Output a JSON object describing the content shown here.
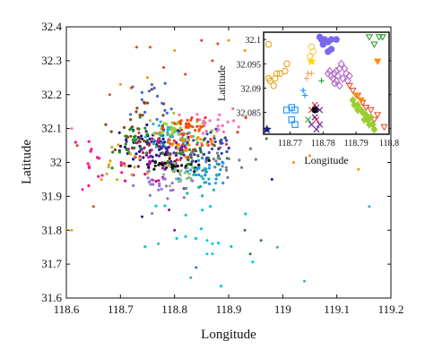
{
  "chart_data": [
    {
      "panel": "main",
      "type": "scatter",
      "xlabel": "Longitude",
      "ylabel": "Latitude",
      "xlim": [
        118.6,
        119.2
      ],
      "ylim": [
        31.6,
        32.4
      ],
      "xticks": [
        "118.6",
        "118.7",
        "118.8",
        "118.9",
        "119",
        "119.1",
        "119.2"
      ],
      "yticks": [
        "31.6",
        "31.7",
        "31.8",
        "31.9",
        "32",
        "32.1",
        "32.2",
        "32.3",
        "32.4"
      ],
      "grid": false,
      "legend": "none",
      "clusters": [
        {
          "color": "#1a1a8c",
          "cx": 118.76,
          "cy": 32.05,
          "sx": 0.03,
          "sy": 0.03,
          "n": 60
        },
        {
          "color": "#2bb3c0",
          "cx": 118.79,
          "cy": 32.07,
          "sx": 0.025,
          "sy": 0.02,
          "n": 50
        },
        {
          "color": "#6a1b9a",
          "cx": 118.78,
          "cy": 32.03,
          "sx": 0.03,
          "sy": 0.03,
          "n": 45
        },
        {
          "color": "#2e7d32",
          "cx": 118.83,
          "cy": 32.02,
          "sx": 0.03,
          "sy": 0.02,
          "n": 40
        },
        {
          "color": "#9acd32",
          "cx": 118.8,
          "cy": 32.1,
          "sx": 0.025,
          "sy": 0.02,
          "n": 35
        },
        {
          "color": "#e53935",
          "cx": 118.85,
          "cy": 32.08,
          "sx": 0.04,
          "sy": 0.03,
          "n": 30
        },
        {
          "color": "#ff8c00",
          "cx": 118.82,
          "cy": 32.06,
          "sx": 0.03,
          "sy": 0.02,
          "n": 30
        },
        {
          "color": "#c71585",
          "cx": 118.75,
          "cy": 32.0,
          "sx": 0.03,
          "sy": 0.03,
          "n": 30
        },
        {
          "color": "#3949ab",
          "cx": 118.87,
          "cy": 32.04,
          "sx": 0.025,
          "sy": 0.03,
          "n": 30
        },
        {
          "color": "#111111",
          "cx": 118.8,
          "cy": 31.99,
          "sx": 0.04,
          "sy": 0.01,
          "n": 35
        },
        {
          "color": "#8fbc8f",
          "cx": 118.81,
          "cy": 31.96,
          "sx": 0.02,
          "sy": 0.02,
          "n": 25
        },
        {
          "color": "#1e90ff",
          "cx": 118.86,
          "cy": 31.97,
          "sx": 0.02,
          "sy": 0.02,
          "n": 22
        },
        {
          "color": "#228b22",
          "cx": 118.73,
          "cy": 32.06,
          "sx": 0.02,
          "sy": 0.03,
          "n": 25
        },
        {
          "color": "#ff69b4",
          "cx": 118.88,
          "cy": 32.12,
          "sx": 0.025,
          "sy": 0.02,
          "n": 20
        },
        {
          "color": "#8b4513",
          "cx": 118.74,
          "cy": 32.12,
          "sx": 0.03,
          "sy": 0.04,
          "n": 25
        },
        {
          "color": "#20b2aa",
          "cx": 118.85,
          "cy": 31.95,
          "sx": 0.02,
          "sy": 0.02,
          "n": 20
        },
        {
          "color": "#9370db",
          "cx": 118.77,
          "cy": 31.93,
          "sx": 0.02,
          "sy": 0.02,
          "n": 22
        },
        {
          "color": "#daa520",
          "cx": 118.7,
          "cy": 32.0,
          "sx": 0.03,
          "sy": 0.03,
          "n": 15
        },
        {
          "color": "#708090",
          "cx": 118.88,
          "cy": 32.0,
          "sx": 0.03,
          "sy": 0.02,
          "n": 18
        },
        {
          "color": "#ff4500",
          "cx": 118.82,
          "cy": 32.1,
          "sx": 0.02,
          "sy": 0.015,
          "n": 18
        },
        {
          "color": "#00ced1",
          "cx": 118.85,
          "cy": 31.78,
          "sx": 0.05,
          "sy": 0.08,
          "n": 15
        },
        {
          "color": "#ff1493",
          "cx": 118.65,
          "cy": 32.0,
          "sx": 0.03,
          "sy": 0.07,
          "n": 14
        },
        {
          "color": "#4169e1",
          "cx": 118.77,
          "cy": 32.18,
          "sx": 0.03,
          "sy": 0.04,
          "n": 15
        }
      ],
      "points": [
        {
          "x": 118.73,
          "y": 32.34,
          "color": "#e53935"
        },
        {
          "x": 118.755,
          "y": 32.34,
          "color": "#ff4500"
        },
        {
          "x": 118.8,
          "y": 32.33,
          "color": "#ff8c00"
        },
        {
          "x": 118.85,
          "y": 32.36,
          "color": "#e53935"
        },
        {
          "x": 118.87,
          "y": 32.3,
          "color": "#e53935"
        },
        {
          "x": 118.88,
          "y": 32.35,
          "color": "#e53935"
        },
        {
          "x": 118.9,
          "y": 32.36,
          "color": "#ff8c00"
        },
        {
          "x": 118.93,
          "y": 32.33,
          "color": "#ff8c00"
        },
        {
          "x": 118.78,
          "y": 32.28,
          "color": "#e53935"
        },
        {
          "x": 118.82,
          "y": 32.26,
          "color": "#e53935"
        },
        {
          "x": 118.75,
          "y": 32.25,
          "color": "#ff8c00"
        },
        {
          "x": 118.72,
          "y": 32.22,
          "color": "#ff4500"
        },
        {
          "x": 118.68,
          "y": 32.2,
          "color": "#e53935"
        },
        {
          "x": 118.7,
          "y": 32.23,
          "color": "#ff8c00"
        },
        {
          "x": 118.61,
          "y": 32.1,
          "color": "#ff69b4"
        },
        {
          "x": 118.62,
          "y": 32.05,
          "color": "#e53935"
        },
        {
          "x": 118.63,
          "y": 31.92,
          "color": "#ff1493"
        },
        {
          "x": 118.6,
          "y": 31.8,
          "color": "#daa520"
        },
        {
          "x": 118.61,
          "y": 31.8,
          "color": "#daa520"
        },
        {
          "x": 118.65,
          "y": 31.87,
          "color": "#e53935"
        },
        {
          "x": 118.84,
          "y": 31.69,
          "color": "#4169e1"
        },
        {
          "x": 118.86,
          "y": 31.73,
          "color": "#00ced1"
        },
        {
          "x": 118.87,
          "y": 31.73,
          "color": "#00ced1"
        },
        {
          "x": 118.86,
          "y": 31.77,
          "color": "#00ced1"
        },
        {
          "x": 118.87,
          "y": 31.76,
          "color": "#00ced1"
        },
        {
          "x": 118.94,
          "y": 31.73,
          "color": "#2e7d32"
        },
        {
          "x": 118.96,
          "y": 31.77,
          "color": "#2e7d32"
        },
        {
          "x": 118.93,
          "y": 31.8,
          "color": "#2e7d32"
        },
        {
          "x": 118.99,
          "y": 31.75,
          "color": "#2bb3c0"
        },
        {
          "x": 118.83,
          "y": 31.66,
          "color": "#2bb3c0"
        },
        {
          "x": 118.8,
          "y": 31.8,
          "color": "#6a1b9a"
        },
        {
          "x": 118.74,
          "y": 31.84,
          "color": "#1a1a8c"
        },
        {
          "x": 118.79,
          "y": 31.86,
          "color": "#6a1b9a"
        },
        {
          "x": 118.77,
          "y": 31.76,
          "color": "#2bb3c0"
        },
        {
          "x": 118.98,
          "y": 31.95,
          "color": "#1a1a8c"
        },
        {
          "x": 118.97,
          "y": 32.07,
          "color": "#2e7d32"
        },
        {
          "x": 118.97,
          "y": 32.12,
          "color": "#e53935"
        },
        {
          "x": 119.02,
          "y": 32.0,
          "color": "#ff8c00"
        },
        {
          "x": 119.05,
          "y": 32.02,
          "color": "#ff8c00"
        },
        {
          "x": 119.04,
          "y": 31.65,
          "color": "#2bb3c0"
        },
        {
          "x": 119.14,
          "y": 31.98,
          "color": "#ff8c00"
        },
        {
          "x": 119.16,
          "y": 31.87,
          "color": "#2bb3c0"
        }
      ]
    },
    {
      "panel": "inset",
      "type": "scatter",
      "xlabel": "Longitude",
      "ylabel": "Latitude",
      "xlim": [
        118.762,
        118.8
      ],
      "ylim": [
        32.0805,
        32.1015
      ],
      "xticks": [
        "118.77",
        "118.78",
        "118.79",
        "118.8"
      ],
      "yticks": [
        "32.085",
        "32.09",
        "32.095",
        "32.1"
      ],
      "grid": false,
      "legend": "none",
      "groups": [
        {
          "marker": "circle",
          "color": "#7b68ee",
          "filled": true,
          "points": [
            [
              118.779,
              32.1005
            ],
            [
              118.7795,
              32.1
            ],
            [
              118.78,
              32.099
            ],
            [
              118.7805,
              32.1
            ],
            [
              118.7815,
              32.0995
            ],
            [
              118.7815,
              32.0975
            ],
            [
              118.7825,
              32.098
            ],
            [
              118.7825,
              32.1
            ],
            [
              118.784,
              32.1
            ]
          ]
        },
        {
          "marker": "diamond",
          "color": "#b366c8",
          "filled": false,
          "points": [
            [
              118.7815,
              32.093
            ],
            [
              118.782,
              32.0935
            ],
            [
              118.7825,
              32.0925
            ],
            [
              118.783,
              32.092
            ],
            [
              118.7835,
              32.093
            ],
            [
              118.784,
              32.0915
            ],
            [
              118.784,
              32.0935
            ],
            [
              118.7845,
              32.0925
            ],
            [
              118.785,
              32.094
            ],
            [
              118.7855,
              32.095
            ],
            [
              118.786,
              32.092
            ],
            [
              118.7865,
              32.094
            ],
            [
              118.787,
              32.093
            ],
            [
              118.7875,
              32.0915
            ],
            [
              118.788,
              32.0925
            ],
            [
              118.7835,
              32.091
            ],
            [
              118.785,
              32.0905
            ]
          ]
        },
        {
          "marker": "triangle-down",
          "color": "#e8512e",
          "filled": false,
          "points": [
            [
              118.788,
              32.0905
            ],
            [
              118.789,
              32.0895
            ],
            [
              118.7905,
              32.0885
            ],
            [
              118.792,
              32.087
            ],
            [
              118.7955,
              32.0835
            ],
            [
              118.7985,
              32.082
            ],
            [
              118.7965,
              32.0845
            ],
            [
              118.793,
              32.086
            ],
            [
              118.7945,
              32.0855
            ]
          ]
        },
        {
          "marker": "triangle-down",
          "color": "#2ca02c",
          "filled": false,
          "points": [
            [
              118.794,
              32.1005
            ],
            [
              118.7955,
              32.099
            ],
            [
              118.797,
              32.1005
            ],
            [
              118.798,
              32.1005
            ]
          ]
        },
        {
          "marker": "triangle-down",
          "color": "#ff8c00",
          "filled": true,
          "points": [
            [
              118.7965,
              32.0955
            ],
            [
              118.79,
              32.0885
            ],
            [
              118.7915,
              32.0875
            ]
          ]
        },
        {
          "marker": "diamond",
          "color": "#9acd32",
          "filled": true,
          "points": [
            [
              118.789,
              32.0875
            ],
            [
              118.7895,
              32.0865
            ],
            [
              118.7905,
              32.0865
            ],
            [
              118.7905,
              32.0855
            ],
            [
              118.7915,
              32.0855
            ],
            [
              118.792,
              32.085
            ],
            [
              118.7925,
              32.0835
            ],
            [
              118.7935,
              32.0835
            ],
            [
              118.794,
              32.0825
            ],
            [
              118.795,
              32.0825
            ],
            [
              118.7955,
              32.0815
            ],
            [
              118.793,
              32.0845
            ],
            [
              118.7945,
              32.084
            ]
          ]
        },
        {
          "marker": "circle",
          "color": "#e8a21a",
          "filled": false,
          "points": [
            [
              118.7635,
              32.099
            ],
            [
              118.7635,
              32.092
            ],
            [
              118.764,
              32.0915
            ],
            [
              118.765,
              32.0905
            ],
            [
              118.7655,
              32.092
            ],
            [
              118.767,
              32.093
            ],
            [
              118.7685,
              32.0935
            ],
            [
              118.769,
              32.095
            ],
            [
              118.766,
              32.093
            ]
          ]
        },
        {
          "marker": "circle",
          "color": "#f2c94c",
          "filled": false,
          "points": [
            [
              118.7765,
              32.0985
            ],
            [
              118.777,
              32.0975
            ],
            [
              118.776,
              32.0965
            ]
          ]
        },
        {
          "marker": "plus",
          "color": "#f4a460",
          "filled": true,
          "points": [
            [
              118.775,
              32.092
            ],
            [
              118.7755,
              32.093
            ],
            [
              118.7765,
              32.093
            ]
          ]
        },
        {
          "marker": "star",
          "color": "#ffd700",
          "filled": true,
          "points": [
            [
              118.7765,
              32.0955
            ]
          ]
        },
        {
          "marker": "plus",
          "color": "#1e90ff",
          "filled": true,
          "points": [
            [
              118.774,
              32.0895
            ],
            [
              118.7745,
              32.0885
            ]
          ]
        },
        {
          "marker": "square",
          "color": "#1e90ff",
          "filled": false,
          "points": [
            [
              118.769,
              32.0855
            ],
            [
              118.7705,
              32.086
            ],
            [
              118.7715,
              32.0855
            ],
            [
              118.7705,
              32.0835
            ],
            [
              118.7715,
              32.0825
            ]
          ]
        },
        {
          "marker": "cross",
          "color": "#e53935",
          "filled": true,
          "points": [
            [
              118.7775,
              32.0865
            ],
            [
              118.7765,
              32.0855
            ],
            [
              118.778,
              32.0835
            ]
          ]
        },
        {
          "marker": "cross",
          "color": "#6a1b9a",
          "filled": true,
          "points": [
            [
              118.778,
              32.086
            ],
            [
              118.779,
              32.0855
            ],
            [
              118.7775,
              32.084
            ],
            [
              118.779,
              32.0825
            ],
            [
              118.7765,
              32.0825
            ],
            [
              118.778,
              32.0815
            ]
          ]
        },
        {
          "marker": "circle",
          "color": "#111111",
          "filled": true,
          "points": [
            [
              118.7775,
              32.0855
            ]
          ]
        },
        {
          "marker": "cross",
          "color": "#2ca02c",
          "filled": true,
          "points": [
            [
              118.7755,
              32.0835
            ]
          ]
        },
        {
          "marker": "plus",
          "color": "#2ca02c",
          "filled": true,
          "points": [
            [
              118.7795,
              32.0915
            ]
          ]
        },
        {
          "marker": "star",
          "color": "#1a237e",
          "filled": true,
          "points": [
            [
              118.763,
              32.0815
            ]
          ]
        }
      ]
    }
  ]
}
